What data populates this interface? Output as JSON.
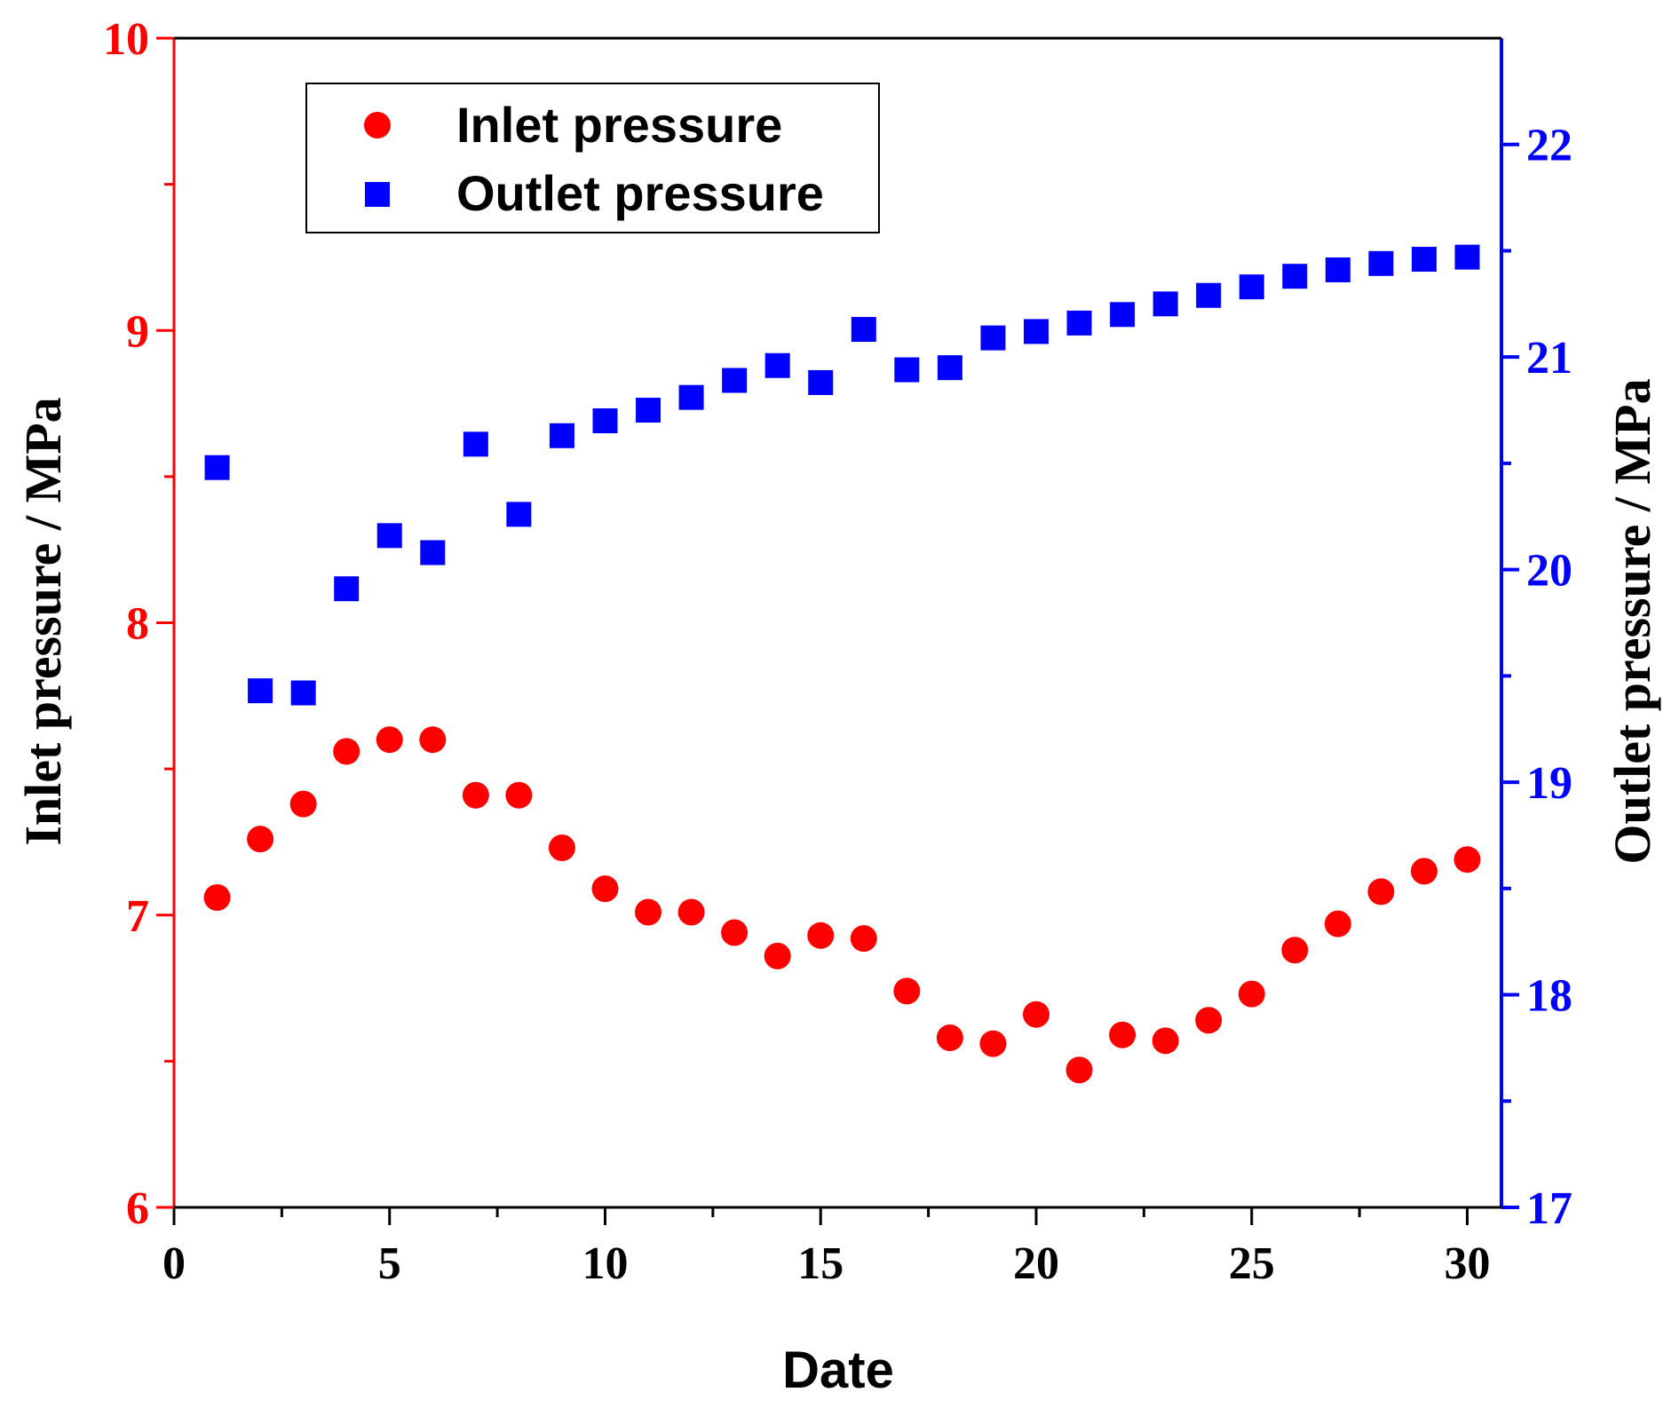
{
  "chart_data": {
    "type": "scatter",
    "title": "",
    "xlabel": "Date",
    "ylabel_left": "Inlet pressure / MPa",
    "ylabel_right": "Outlet pressure / MPa",
    "xlim": [
      0,
      30.5
    ],
    "ylim_left": [
      6,
      10
    ],
    "ylim_right": [
      17,
      22.5
    ],
    "x_ticks": [
      0,
      5,
      10,
      15,
      20,
      25,
      30
    ],
    "y_left_ticks": [
      6,
      7,
      8,
      9,
      10
    ],
    "y_right_ticks": [
      17,
      18,
      19,
      20,
      21,
      22
    ],
    "grid": false,
    "legend_position": "top-left",
    "colors": {
      "left_axis": "#ff0000",
      "right_axis": "#0000ff",
      "inlet": "#ff0000",
      "outlet": "#0000ff"
    },
    "series": [
      {
        "name": "Inlet pressure",
        "axis": "left",
        "marker": "circle",
        "x": [
          1,
          2,
          3,
          4,
          5,
          6,
          7,
          8,
          9,
          10,
          11,
          12,
          13,
          14,
          15,
          16,
          17,
          18,
          19,
          20,
          21,
          22,
          23,
          24,
          25,
          26,
          27,
          28,
          29,
          30
        ],
        "values": [
          7.06,
          7.26,
          7.38,
          7.56,
          7.6,
          7.6,
          7.41,
          7.41,
          7.23,
          7.09,
          7.01,
          7.01,
          6.94,
          6.86,
          6.93,
          6.92,
          6.74,
          6.58,
          6.56,
          6.66,
          6.47,
          6.59,
          6.57,
          6.64,
          6.73,
          6.88,
          6.97,
          7.08,
          7.15,
          7.19
        ]
      },
      {
        "name": "Outlet pressure",
        "axis": "right",
        "marker": "square",
        "x": [
          1,
          2,
          3,
          4,
          5,
          6,
          7,
          8,
          9,
          10,
          11,
          12,
          13,
          14,
          15,
          16,
          17,
          18,
          19,
          20,
          21,
          22,
          23,
          24,
          25,
          26,
          27,
          28,
          29,
          30
        ],
        "values": [
          20.48,
          19.43,
          19.42,
          19.91,
          20.16,
          20.08,
          20.59,
          20.26,
          20.63,
          20.7,
          20.75,
          20.81,
          20.89,
          20.96,
          20.88,
          21.13,
          20.94,
          20.95,
          21.09,
          21.12,
          21.16,
          21.2,
          21.25,
          21.29,
          21.33,
          21.38,
          21.41,
          21.44,
          21.46,
          21.47
        ]
      }
    ]
  }
}
